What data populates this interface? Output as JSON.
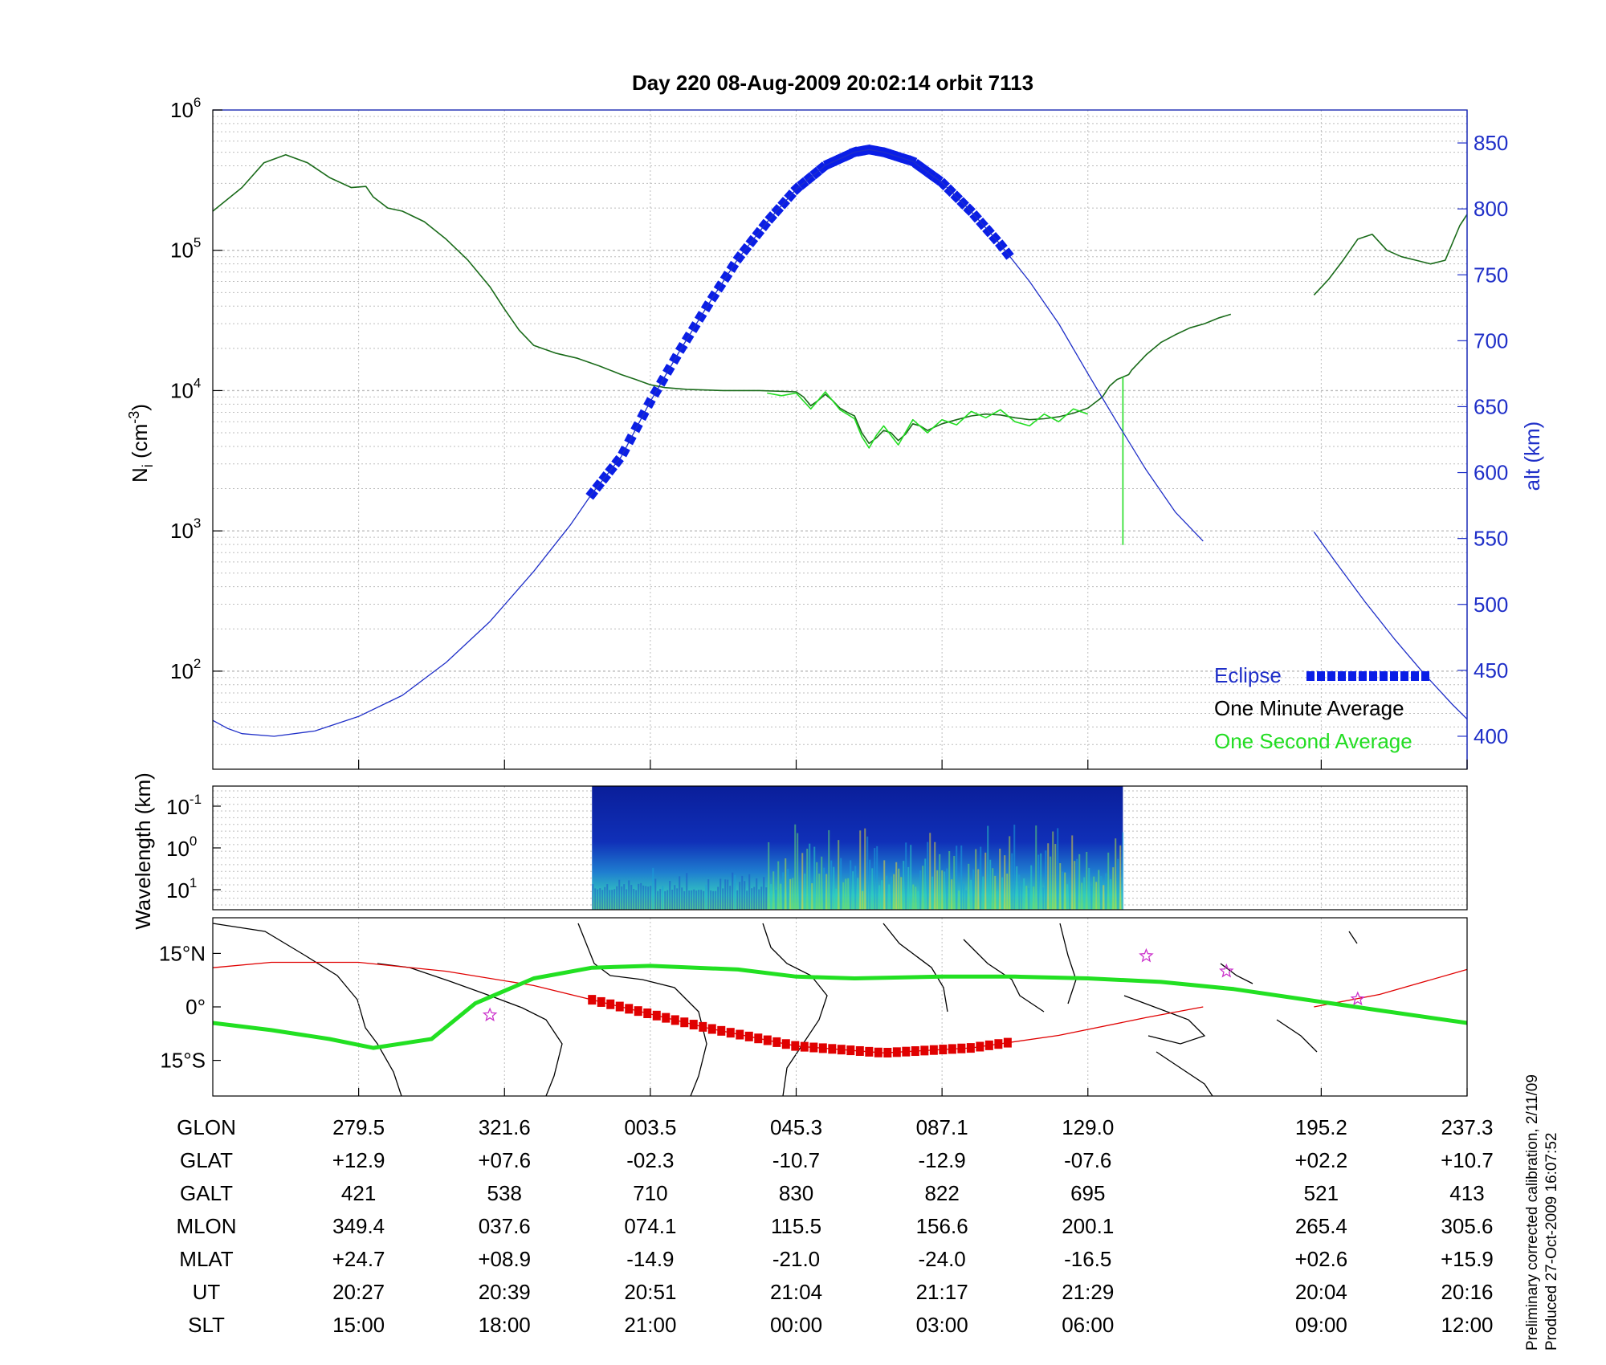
{
  "title": "Day 220  08-Aug-2009 20:02:14   orbit 7113",
  "colors": {
    "density_avg": "#1a6b1a",
    "density_1s": "#22dd22",
    "altitude": "#1f2fc8",
    "eclipse": "#0a1ee6",
    "track": "#e00000",
    "magnetic_equator": "#22e022",
    "star": "#cc33cc",
    "left_axis_text": "#000000",
    "right_axis_text": "#1f2fc8"
  },
  "chart_data": [
    {
      "type": "line",
      "title": "",
      "ylabel_left": {
        "main": "N",
        "sub": "i",
        "unit_pre": " (cm",
        "unit_sup": "-3",
        "unit_post": ")"
      },
      "ylabel_right": "alt (km)",
      "y_left_scale": "log",
      "y_left_range": [
        20,
        1000000
      ],
      "y_left_ticks": [
        {
          "value": 100,
          "base": "10",
          "exp": "2"
        },
        {
          "value": 1000,
          "base": "10",
          "exp": "3"
        },
        {
          "value": 10000,
          "base": "10",
          "exp": "4"
        },
        {
          "value": 100000,
          "base": "10",
          "exp": "5"
        },
        {
          "value": 1000000,
          "base": "10",
          "exp": "6"
        }
      ],
      "y_right_range": [
        375,
        875
      ],
      "y_right_ticks": [
        "400",
        "450",
        "500",
        "550",
        "600",
        "650",
        "700",
        "750",
        "800",
        "850"
      ],
      "x_range": [
        0,
        8.6
      ],
      "x_ticks": [
        1,
        2,
        3,
        4,
        5,
        6,
        7.6,
        8.6
      ],
      "grid": true,
      "legend_position": "bottom-right",
      "legend": [
        "Eclipse",
        "One Minute Average",
        "One Second Average"
      ],
      "series": [
        {
          "name": "One Minute Average",
          "axis": "left",
          "segments": [
            [
              [
                0,
                190000
              ],
              [
                0.2,
                280000
              ],
              [
                0.35,
                420000
              ],
              [
                0.5,
                480000
              ],
              [
                0.65,
                420000
              ],
              [
                0.8,
                330000
              ],
              [
                0.95,
                280000
              ],
              [
                1.05,
                285000
              ],
              [
                1.1,
                240000
              ],
              [
                1.2,
                200000
              ],
              [
                1.3,
                190000
              ],
              [
                1.45,
                160000
              ],
              [
                1.6,
                120000
              ],
              [
                1.75,
                85000
              ],
              [
                1.9,
                55000
              ],
              [
                2.0,
                38000
              ],
              [
                2.1,
                27000
              ],
              [
                2.2,
                21000
              ],
              [
                2.35,
                18500
              ],
              [
                2.5,
                17000
              ],
              [
                2.65,
                15000
              ],
              [
                2.8,
                13000
              ],
              [
                2.9,
                12000
              ],
              [
                3.0,
                11000
              ],
              [
                3.1,
                10500
              ],
              [
                3.25,
                10200
              ],
              [
                3.5,
                10000
              ],
              [
                3.75,
                10000
              ],
              [
                4.0,
                9800
              ],
              [
                4.05,
                9000
              ],
              [
                4.1,
                7800
              ],
              [
                4.15,
                8500
              ],
              [
                4.2,
                9400
              ],
              [
                4.25,
                8500
              ],
              [
                4.3,
                7500
              ],
              [
                4.35,
                7000
              ],
              [
                4.4,
                6600
              ],
              [
                4.45,
                5000
              ],
              [
                4.5,
                4200
              ],
              [
                4.55,
                4600
              ],
              [
                4.6,
                5200
              ],
              [
                4.65,
                5000
              ],
              [
                4.7,
                4400
              ],
              [
                4.75,
                4900
              ],
              [
                4.8,
                5800
              ],
              [
                4.85,
                5600
              ],
              [
                4.9,
                5200
              ],
              [
                4.95,
                5500
              ],
              [
                5.0,
                5800
              ],
              [
                5.1,
                6200
              ],
              [
                5.2,
                6600
              ],
              [
                5.3,
                6800
              ],
              [
                5.4,
                6700
              ],
              [
                5.5,
                6400
              ],
              [
                5.6,
                6200
              ],
              [
                5.7,
                6300
              ],
              [
                5.8,
                6500
              ],
              [
                5.9,
                6900
              ],
              [
                6.0,
                7500
              ],
              [
                6.1,
                9000
              ],
              [
                6.15,
                10800
              ],
              [
                6.2,
                12000
              ],
              [
                6.28,
                13000
              ],
              [
                6.3,
                14000
              ],
              [
                6.4,
                18000
              ],
              [
                6.5,
                22000
              ],
              [
                6.6,
                25000
              ],
              [
                6.7,
                28000
              ],
              [
                6.8,
                30000
              ],
              [
                6.9,
                33000
              ],
              [
                6.98,
                35000
              ]
            ],
            [
              [
                7.55,
                48000
              ],
              [
                7.65,
                62000
              ],
              [
                7.75,
                85000
              ],
              [
                7.85,
                120000
              ],
              [
                7.95,
                130000
              ],
              [
                8.05,
                100000
              ],
              [
                8.15,
                90000
              ],
              [
                8.25,
                85000
              ],
              [
                8.35,
                80000
              ],
              [
                8.45,
                85000
              ],
              [
                8.55,
                150000
              ],
              [
                8.6,
                180000
              ]
            ]
          ]
        },
        {
          "name": "One Second Average",
          "axis": "left",
          "segments": [
            [
              [
                3.8,
                9600
              ],
              [
                3.9,
                9200
              ],
              [
                4.0,
                9600
              ],
              [
                4.1,
                7400
              ],
              [
                4.2,
                9800
              ],
              [
                4.3,
                7300
              ],
              [
                4.4,
                6300
              ],
              [
                4.45,
                4700
              ],
              [
                4.5,
                3900
              ],
              [
                4.55,
                4800
              ],
              [
                4.6,
                5600
              ],
              [
                4.7,
                4100
              ],
              [
                4.8,
                6200
              ],
              [
                4.9,
                5000
              ],
              [
                5.0,
                6200
              ],
              [
                5.1,
                5700
              ],
              [
                5.2,
                7100
              ],
              [
                5.3,
                6400
              ],
              [
                5.4,
                7300
              ],
              [
                5.5,
                6000
              ],
              [
                5.6,
                5600
              ],
              [
                5.7,
                6800
              ],
              [
                5.8,
                6000
              ],
              [
                5.9,
                7400
              ],
              [
                6.0,
                6800
              ]
            ],
            [
              [
                6.24,
                12500
              ],
              [
                6.24,
                800
              ],
              [
                6.24,
                12500
              ]
            ]
          ]
        },
        {
          "name": "altitude",
          "axis": "right",
          "segments": [
            [
              [
                0,
                412
              ],
              [
                0.1,
                406
              ],
              [
                0.2,
                402
              ],
              [
                0.42,
                400
              ],
              [
                0.7,
                404
              ],
              [
                1.0,
                415
              ],
              [
                1.3,
                431
              ],
              [
                1.6,
                456
              ],
              [
                1.9,
                487
              ],
              [
                2.2,
                525
              ],
              [
                2.45,
                560
              ],
              [
                2.6,
                584
              ],
              [
                2.8,
                612
              ],
              [
                3.0,
                654
              ],
              [
                3.2,
                692
              ],
              [
                3.4,
                728
              ],
              [
                3.6,
                762
              ],
              [
                3.8,
                790
              ],
              [
                4.0,
                815
              ],
              [
                4.2,
                833
              ],
              [
                4.4,
                843
              ],
              [
                4.5,
                845
              ],
              [
                4.6,
                843
              ],
              [
                4.8,
                836
              ],
              [
                5.0,
                820
              ],
              [
                5.2,
                798
              ],
              [
                5.4,
                773
              ],
              [
                5.6,
                745
              ],
              [
                5.8,
                713
              ],
              [
                6.0,
                675
              ],
              [
                6.2,
                638
              ],
              [
                6.4,
                602
              ],
              [
                6.6,
                570
              ],
              [
                6.79,
                548
              ]
            ],
            [
              [
                7.55,
                555
              ],
              [
                7.7,
                532
              ],
              [
                7.9,
                502
              ],
              [
                8.1,
                474
              ],
              [
                8.3,
                448
              ],
              [
                8.5,
                424
              ],
              [
                8.6,
                413
              ]
            ]
          ]
        }
      ],
      "eclipse": {
        "axis": "right",
        "x_start": 2.6,
        "x_end": 5.45
      }
    },
    {
      "type": "heatmap",
      "ylabel": "Wavelength (km)",
      "y_ticks": [
        {
          "base": "10",
          "exp": "-1"
        },
        {
          "base": "10",
          "exp": "0"
        },
        {
          "base": "10",
          "exp": "1"
        }
      ],
      "x_range": [
        0,
        8.6
      ],
      "data_x_range": [
        2.6,
        6.24
      ]
    },
    {
      "type": "map",
      "y_ticks": [
        "15°N",
        "0°",
        "15°S"
      ],
      "lat_range": [
        -25,
        25
      ],
      "x_range": [
        0,
        8.6
      ],
      "magnetic_equator": [
        [
          0,
          -4.5
        ],
        [
          0.4,
          -6.5
        ],
        [
          0.8,
          -9
        ],
        [
          1.1,
          -11.5
        ],
        [
          1.5,
          -9
        ],
        [
          1.8,
          1
        ],
        [
          2.2,
          8
        ],
        [
          2.6,
          11
        ],
        [
          3.0,
          11.5
        ],
        [
          3.6,
          10.5
        ],
        [
          4.0,
          8.5
        ],
        [
          4.4,
          8
        ],
        [
          5.0,
          8.5
        ],
        [
          5.5,
          8.5
        ],
        [
          6.0,
          8
        ],
        [
          6.5,
          7
        ],
        [
          7.0,
          5
        ],
        [
          7.5,
          2
        ],
        [
          8.0,
          -1
        ],
        [
          8.6,
          -4.5
        ]
      ],
      "track": [
        [
          0,
          11
        ],
        [
          0.4,
          12.5
        ],
        [
          1.0,
          12.5
        ],
        [
          1.6,
          10
        ],
        [
          2.2,
          6
        ],
        [
          2.8,
          0
        ],
        [
          3.4,
          -6
        ],
        [
          4.0,
          -11
        ],
        [
          4.6,
          -12.9
        ],
        [
          5.2,
          -11.5
        ],
        [
          5.8,
          -8
        ],
        [
          6.4,
          -3
        ],
        [
          6.79,
          0
        ]
      ],
      "track2": [
        [
          7.55,
          0
        ],
        [
          8.0,
          3.5
        ],
        [
          8.6,
          10.5
        ]
      ],
      "red_track": {
        "x_start": 2.6,
        "x_end": 5.45
      },
      "stars": [
        [
          1.9,
          -2.3
        ],
        [
          6.4,
          14.3
        ],
        [
          6.95,
          10
        ],
        [
          7.85,
          2.2
        ]
      ]
    }
  ],
  "table": {
    "rows": [
      {
        "label": "GLON",
        "values": [
          "279.5",
          "321.6",
          "003.5",
          "045.3",
          "087.1",
          "129.0",
          "195.2",
          "237.3"
        ]
      },
      {
        "label": "GLAT",
        "values": [
          "+12.9",
          "+07.6",
          "-02.3",
          "-10.7",
          "-12.9",
          "-07.6",
          "+02.2",
          "+10.7"
        ]
      },
      {
        "label": "GALT",
        "values": [
          "421",
          "538",
          "710",
          "830",
          "822",
          "695",
          "521",
          "413"
        ]
      },
      {
        "label": "MLON",
        "values": [
          "349.4",
          "037.6",
          "074.1",
          "115.5",
          "156.6",
          "200.1",
          "265.4",
          "305.6"
        ]
      },
      {
        "label": "MLAT",
        "values": [
          "+24.7",
          "+08.9",
          "-14.9",
          "-21.0",
          "-24.0",
          "-16.5",
          "+02.6",
          "+15.9"
        ]
      },
      {
        "label": "UT",
        "values": [
          "20:27",
          "20:39",
          "20:51",
          "21:04",
          "21:17",
          "21:29",
          "20:04",
          "20:16"
        ]
      },
      {
        "label": "SLT",
        "values": [
          "15:00",
          "18:00",
          "21:00",
          "00:00",
          "03:00",
          "06:00",
          "09:00",
          "12:00"
        ]
      }
    ]
  },
  "footer": {
    "line1": "Preliminary corrected calibration, 2/11/09",
    "line2": "Produced 27-Oct-2009 16:07:52"
  }
}
